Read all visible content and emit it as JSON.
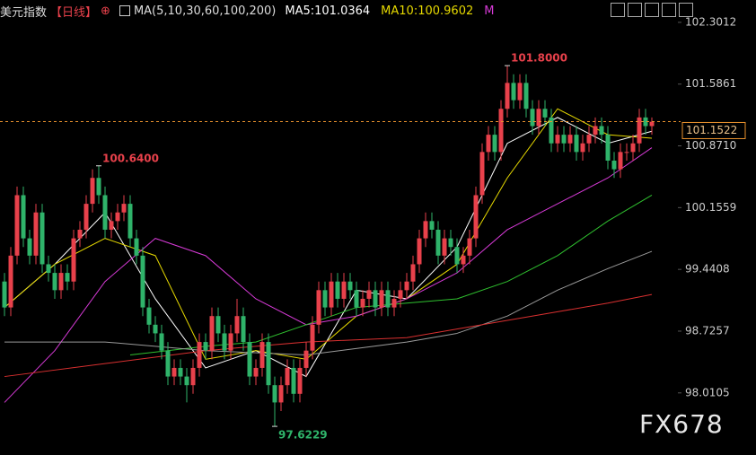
{
  "header": {
    "title": "美元指数",
    "period": "【日线】",
    "ma_title": "MA(5,10,30,60,100,200)",
    "ma_legend": [
      {
        "label": "MA5:101.0364",
        "color": "#ffffff"
      },
      {
        "label": "MA10:100.9602",
        "color": "#e6d900"
      },
      {
        "label": "M",
        "color": "#d63ad6"
      }
    ]
  },
  "watermark": "FX678",
  "chart_data": {
    "type": "candlestick",
    "up_color": "#e8414b",
    "down_color": "#2fb36a",
    "grid": false,
    "ylim": [
      97.52,
      102.56
    ],
    "yticks": [
      98.0105,
      98.7257,
      99.4408,
      100.1559,
      {
        "value": 100.871,
        "label": "100.8710"
      },
      101.5861,
      102.3012
    ],
    "open": [
      99.3,
      99.0,
      99.6,
      100.3,
      99.8,
      99.6,
      100.1,
      99.5,
      99.4,
      99.2,
      99.4,
      99.3,
      99.8,
      99.9,
      100.2,
      100.5,
      100.3,
      99.9,
      100.0,
      100.1,
      100.2,
      99.8,
      99.6,
      99.0,
      98.8,
      98.7,
      98.5,
      98.2,
      98.3,
      98.2,
      98.1,
      98.3,
      98.6,
      98.5,
      98.9,
      98.7,
      98.5,
      98.7,
      98.9,
      98.6,
      98.2,
      98.3,
      98.6,
      98.1,
      97.9,
      98.1,
      98.3,
      98.0,
      98.3,
      98.5,
      98.8,
      99.2,
      99.0,
      99.3,
      99.1,
      99.3,
      99.2,
      99.0,
      99.1,
      99.2,
      99.0,
      99.2,
      99.0,
      99.1,
      99.2,
      99.3,
      99.5,
      99.8,
      100.0,
      99.9,
      99.6,
      99.8,
      99.7,
      99.5,
      99.6,
      99.8,
      100.3,
      100.8,
      101.0,
      100.8,
      101.3,
      101.6,
      101.4,
      101.6,
      101.3,
      101.1,
      101.3,
      101.2,
      100.9,
      101.0,
      100.9,
      101.0,
      100.8,
      100.9,
      101.0,
      101.1,
      101.0,
      100.7,
      100.6,
      100.8,
      100.8,
      100.9,
      101.2,
      101.1
    ],
    "high": [
      99.4,
      99.7,
      100.4,
      100.4,
      99.9,
      100.2,
      100.2,
      99.6,
      99.5,
      99.5,
      99.5,
      99.9,
      100.0,
      100.3,
      100.6,
      100.64,
      100.4,
      100.1,
      100.2,
      100.3,
      100.3,
      99.9,
      99.7,
      99.1,
      98.9,
      98.8,
      98.6,
      98.4,
      98.4,
      98.3,
      98.4,
      98.7,
      98.7,
      99.0,
      99.0,
      98.8,
      98.8,
      99.1,
      99.0,
      98.7,
      98.4,
      98.7,
      98.7,
      98.2,
      98.2,
      98.4,
      98.4,
      98.4,
      98.6,
      98.9,
      99.3,
      99.3,
      99.4,
      99.4,
      99.4,
      99.4,
      99.3,
      99.2,
      99.3,
      99.3,
      99.3,
      99.3,
      99.2,
      99.3,
      99.4,
      99.6,
      99.9,
      100.1,
      100.1,
      100.0,
      99.9,
      99.9,
      99.8,
      99.7,
      99.9,
      100.4,
      100.9,
      101.1,
      101.1,
      101.4,
      101.8,
      101.7,
      101.7,
      101.7,
      101.4,
      101.4,
      101.4,
      101.3,
      101.1,
      101.1,
      101.1,
      101.1,
      101.0,
      101.1,
      101.2,
      101.2,
      101.1,
      100.8,
      100.9,
      100.9,
      101.0,
      101.3,
      101.3,
      101.2
    ],
    "low": [
      98.9,
      98.9,
      99.5,
      99.7,
      99.5,
      99.5,
      99.4,
      99.3,
      99.1,
      99.1,
      99.2,
      99.2,
      99.7,
      99.8,
      100.1,
      100.2,
      99.8,
      99.8,
      99.9,
      100.0,
      99.7,
      99.5,
      98.9,
      98.7,
      98.6,
      98.4,
      98.1,
      98.1,
      98.1,
      97.9,
      98.0,
      98.2,
      98.4,
      98.4,
      98.6,
      98.4,
      98.4,
      98.6,
      98.5,
      98.1,
      98.1,
      98.2,
      98.0,
      97.6229,
      97.8,
      98.0,
      97.9,
      97.9,
      98.2,
      98.4,
      98.7,
      98.9,
      98.9,
      99.0,
      99.0,
      99.1,
      98.9,
      98.9,
      99.0,
      98.9,
      98.9,
      98.9,
      98.9,
      99.0,
      99.1,
      99.2,
      99.4,
      99.7,
      99.8,
      99.5,
      99.5,
      99.6,
      99.4,
      99.4,
      99.5,
      99.7,
      100.2,
      100.7,
      100.7,
      100.7,
      101.2,
      101.3,
      101.3,
      101.2,
      101.0,
      101.0,
      101.1,
      100.8,
      100.8,
      100.8,
      100.8,
      100.7,
      100.7,
      100.8,
      100.9,
      100.9,
      100.6,
      100.5,
      100.5,
      100.7,
      100.7,
      100.8,
      101.0,
      101.0
    ],
    "close": [
      99.0,
      99.6,
      100.3,
      99.8,
      99.6,
      100.1,
      99.5,
      99.4,
      99.2,
      99.4,
      99.3,
      99.8,
      99.9,
      100.2,
      100.5,
      100.3,
      99.9,
      100.0,
      100.1,
      100.2,
      99.8,
      99.6,
      99.0,
      98.8,
      98.7,
      98.5,
      98.2,
      98.3,
      98.2,
      98.1,
      98.3,
      98.6,
      98.5,
      98.9,
      98.7,
      98.5,
      98.7,
      98.9,
      98.6,
      98.2,
      98.3,
      98.6,
      98.1,
      97.9,
      98.1,
      98.3,
      98.0,
      98.3,
      98.5,
      98.8,
      99.2,
      99.0,
      99.3,
      99.1,
      99.3,
      99.2,
      99.0,
      99.1,
      99.2,
      99.0,
      99.2,
      99.0,
      99.1,
      99.2,
      99.3,
      99.5,
      99.8,
      100.0,
      99.9,
      99.6,
      99.8,
      99.7,
      99.5,
      99.6,
      99.8,
      100.3,
      100.8,
      101.0,
      100.8,
      101.3,
      101.6,
      101.4,
      101.6,
      101.3,
      101.1,
      101.3,
      101.2,
      100.9,
      101.0,
      100.9,
      101.0,
      100.8,
      100.9,
      101.0,
      101.1,
      101.0,
      100.7,
      100.6,
      100.8,
      100.8,
      100.9,
      101.2,
      101.1,
      101.15
    ],
    "lines": [
      {
        "color": "#ffffff",
        "x": [
          0,
          8,
          16,
          24,
          32,
          40,
          48,
          56,
          64,
          72,
          80,
          88,
          96,
          103
        ],
        "values": [
          99.0,
          99.5,
          100.1,
          99.1,
          98.3,
          98.5,
          98.2,
          99.2,
          99.1,
          99.7,
          100.9,
          101.2,
          100.9,
          101.04
        ]
      },
      {
        "color": "#e6d900",
        "x": [
          0,
          8,
          16,
          24,
          32,
          40,
          48,
          56,
          64,
          72,
          80,
          88,
          96,
          103
        ],
        "values": [
          99.0,
          99.5,
          99.8,
          99.6,
          98.4,
          98.5,
          98.4,
          98.9,
          99.1,
          99.5,
          100.5,
          101.3,
          101.0,
          100.96
        ]
      },
      {
        "color": "#d63ad6",
        "x": [
          0,
          8,
          16,
          24,
          32,
          40,
          48,
          56,
          64,
          72,
          80,
          88,
          96,
          103
        ],
        "values": [
          97.9,
          98.5,
          99.3,
          99.8,
          99.6,
          99.1,
          98.8,
          98.9,
          99.1,
          99.4,
          99.9,
          100.2,
          100.5,
          100.85
        ]
      },
      {
        "color": "#2fc02f",
        "x": [
          20,
          32,
          40,
          48,
          56,
          64,
          72,
          80,
          88,
          96,
          103
        ],
        "values": [
          98.45,
          98.55,
          98.6,
          98.8,
          99.0,
          99.05,
          99.1,
          99.3,
          99.6,
          100.0,
          100.3
        ]
      },
      {
        "color": "#9a9a9a",
        "x": [
          0,
          16,
          32,
          48,
          64,
          72,
          80,
          88,
          96,
          103
        ],
        "values": [
          98.6,
          98.6,
          98.5,
          98.45,
          98.6,
          98.7,
          98.9,
          99.2,
          99.45,
          99.65
        ]
      },
      {
        "color": "#d93030",
        "x": [
          0,
          16,
          32,
          48,
          64,
          72,
          80,
          88,
          96,
          103
        ],
        "values": [
          98.2,
          98.35,
          98.5,
          98.6,
          98.65,
          98.75,
          98.85,
          98.95,
          99.05,
          99.15
        ]
      }
    ],
    "annotations": [
      {
        "x": 15,
        "value": 100.64,
        "label": "100.6400",
        "color": "#e8414b"
      },
      {
        "x": 80,
        "value": 101.8,
        "label": "101.8000",
        "color": "#e8414b"
      },
      {
        "x": 43,
        "value": 97.6229,
        "label": "97.6229",
        "color": "#2fb36a"
      }
    ],
    "last_price": 101.1522
  }
}
